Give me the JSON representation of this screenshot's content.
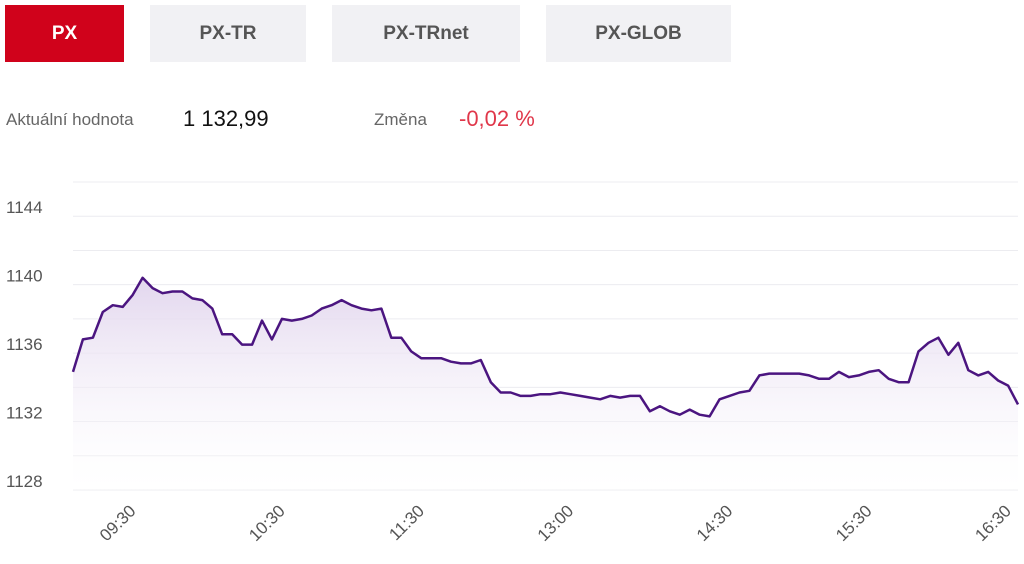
{
  "tabs": [
    "PX",
    "PX-TR",
    "PX-TRnet",
    "PX-GLOB"
  ],
  "active_tab": 0,
  "info": {
    "value_label": "Aktuální hodnota",
    "value": "1 132,99",
    "change_label": "Změna",
    "change": "-0,02 %"
  },
  "chart_data": {
    "type": "line",
    "color": "#4b1580",
    "fill": "#e2d6ee",
    "values": [
      1134.9,
      1136.8,
      1136.9,
      1138.4,
      1138.8,
      1138.7,
      1139.4,
      1140.4,
      1139.8,
      1139.5,
      1139.6,
      1139.6,
      1139.2,
      1139.1,
      1138.6,
      1137.1,
      1137.1,
      1136.5,
      1136.5,
      1137.9,
      1136.8,
      1138.0,
      1137.9,
      1138.0,
      1138.2,
      1138.6,
      1138.8,
      1139.1,
      1138.8,
      1138.6,
      1138.5,
      1138.6,
      1136.9,
      1136.9,
      1136.1,
      1135.7,
      1135.7,
      1135.7,
      1135.5,
      1135.4,
      1135.4,
      1135.6,
      1134.3,
      1133.7,
      1133.7,
      1133.5,
      1133.5,
      1133.6,
      1133.6,
      1133.7,
      1133.6,
      1133.5,
      1133.4,
      1133.3,
      1133.5,
      1133.4,
      1133.5,
      1133.5,
      1132.6,
      1132.9,
      1132.6,
      1132.4,
      1132.7,
      1132.4,
      1132.3,
      1133.3,
      1133.5,
      1133.7,
      1133.8,
      1134.7,
      1134.8,
      1134.8,
      1134.8,
      1134.8,
      1134.7,
      1134.5,
      1134.5,
      1134.9,
      1134.6,
      1134.7,
      1134.9,
      1135.0,
      1134.5,
      1134.3,
      1134.3,
      1136.1,
      1136.6,
      1136.9,
      1135.9,
      1136.6,
      1135.0,
      1134.7,
      1134.9,
      1134.4,
      1134.1,
      1133.0
    ],
    "xlim": [
      0,
      95
    ],
    "xticks": [
      {
        "value": 5,
        "label": "09:30"
      },
      {
        "value": 20,
        "label": "10:30"
      },
      {
        "value": 34,
        "label": "11:30"
      },
      {
        "value": 49,
        "label": "13:00"
      },
      {
        "value": 65,
        "label": "14:30"
      },
      {
        "value": 79,
        "label": "15:30"
      },
      {
        "value": 93,
        "label": "16:30"
      }
    ],
    "ylim": [
      1128,
      1146
    ],
    "yticks": [
      1128,
      1132,
      1136,
      1140,
      1144
    ],
    "minor_yticks": [
      1130,
      1134,
      1138,
      1142,
      1146
    ],
    "grid": true
  }
}
